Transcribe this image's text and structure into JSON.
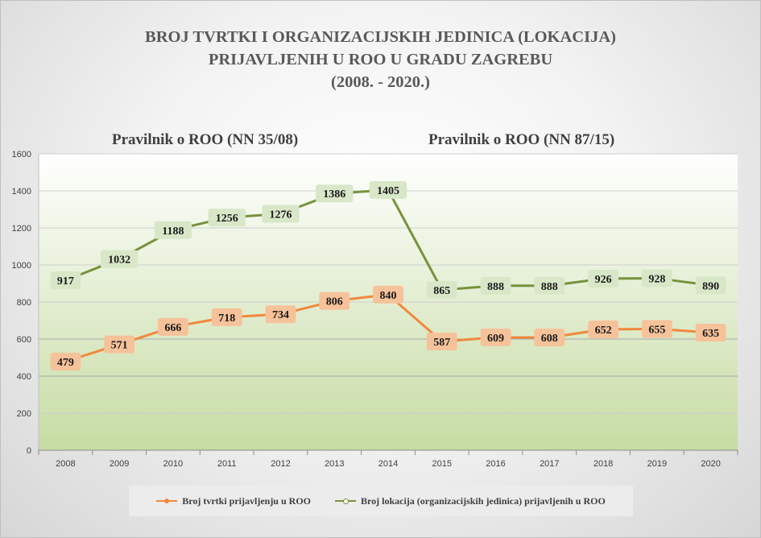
{
  "title": {
    "line1": "BROJ TVRTKI I ORGANIZACIJSKIH JEDINICA (LOKACIJA)",
    "line2": "PRIJAVLJENIH U ROO U GRADU ZAGREBU",
    "line3": "(2008. - 2020.)"
  },
  "sections": {
    "left": "Pravilnik o ROO (NN 35/08)",
    "right": "Pravilnik o ROO (NN 87/15)"
  },
  "chart_data": {
    "type": "line",
    "categories": [
      "2008",
      "2009",
      "2010",
      "2011",
      "2012",
      "2013",
      "2014",
      "2015",
      "2016",
      "2017",
      "2018",
      "2019",
      "2020"
    ],
    "ylim": [
      0,
      1600
    ],
    "yticks": [
      0,
      200,
      400,
      600,
      800,
      1000,
      1200,
      1400,
      1600
    ],
    "grid": true,
    "legend_position": "bottom",
    "series": [
      {
        "name": "Broj tvrtki prijavljenju u ROO",
        "color": "#f0883c",
        "label_bg": "#f6c29a",
        "values": [
          479,
          571,
          666,
          718,
          734,
          806,
          840,
          587,
          609,
          608,
          652,
          655,
          635
        ]
      },
      {
        "name": "Broj lokacija (organizacijskih jedinica) prijavljenih u ROO",
        "color": "#76923c",
        "label_bg": "#d9e7c9",
        "values": [
          917,
          1032,
          1188,
          1256,
          1276,
          1386,
          1405,
          865,
          888,
          888,
          926,
          928,
          890
        ]
      }
    ]
  }
}
